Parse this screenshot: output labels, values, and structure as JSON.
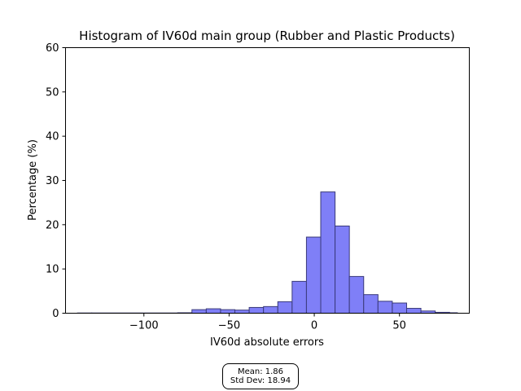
{
  "chart_data": {
    "type": "bar",
    "title": "Histogram of IV60d main group (Rubber and Plastic Products)",
    "xlabel": "IV60d absolute errors",
    "ylabel": "Percentage (%)",
    "xlim": [
      -146,
      91
    ],
    "ylim": [
      0,
      60
    ],
    "xticks": [
      -100,
      -50,
      0,
      50
    ],
    "xtick_labels": [
      "−100",
      "−50",
      "0",
      "50"
    ],
    "yticks": [
      0,
      10,
      20,
      30,
      40,
      50,
      60
    ],
    "ytick_labels": [
      "0",
      "10",
      "20",
      "30",
      "40",
      "50",
      "60"
    ],
    "grid": false,
    "bar_color": "#7f7ff7",
    "edge_color": "#3a3a7a",
    "bins": [
      {
        "start": -139,
        "end": -130.6,
        "value": 0.05
      },
      {
        "start": -130.6,
        "end": -80.2,
        "value": 0.05
      },
      {
        "start": -80.2,
        "end": -71.8,
        "value": 0.1
      },
      {
        "start": -71.8,
        "end": -63.4,
        "value": 0.8
      },
      {
        "start": -63.4,
        "end": -55.0,
        "value": 1.0
      },
      {
        "start": -55.0,
        "end": -46.6,
        "value": 0.8
      },
      {
        "start": -46.6,
        "end": -38.2,
        "value": 0.7
      },
      {
        "start": -38.2,
        "end": -29.8,
        "value": 1.3
      },
      {
        "start": -29.8,
        "end": -21.4,
        "value": 1.5
      },
      {
        "start": -21.4,
        "end": -13.0,
        "value": 2.6
      },
      {
        "start": -13.0,
        "end": -4.6,
        "value": 7.2
      },
      {
        "start": -4.6,
        "end": 3.8,
        "value": 17.2
      },
      {
        "start": 3.8,
        "end": 12.2,
        "value": 27.4
      },
      {
        "start": 12.2,
        "end": 20.6,
        "value": 19.7
      },
      {
        "start": 20.6,
        "end": 29.0,
        "value": 8.3
      },
      {
        "start": 29.0,
        "end": 37.4,
        "value": 4.2
      },
      {
        "start": 37.4,
        "end": 45.8,
        "value": 2.7
      },
      {
        "start": 45.8,
        "end": 54.2,
        "value": 2.3
      },
      {
        "start": 54.2,
        "end": 62.6,
        "value": 1.1
      },
      {
        "start": 62.6,
        "end": 71.0,
        "value": 0.5
      },
      {
        "start": 71.0,
        "end": 79.4,
        "value": 0.2
      },
      {
        "start": 79.4,
        "end": 84.0,
        "value": 0.1
      }
    ],
    "annotation": {
      "mean_text": "Mean: 1.86",
      "std_text": "Std Dev: 18.94"
    }
  }
}
